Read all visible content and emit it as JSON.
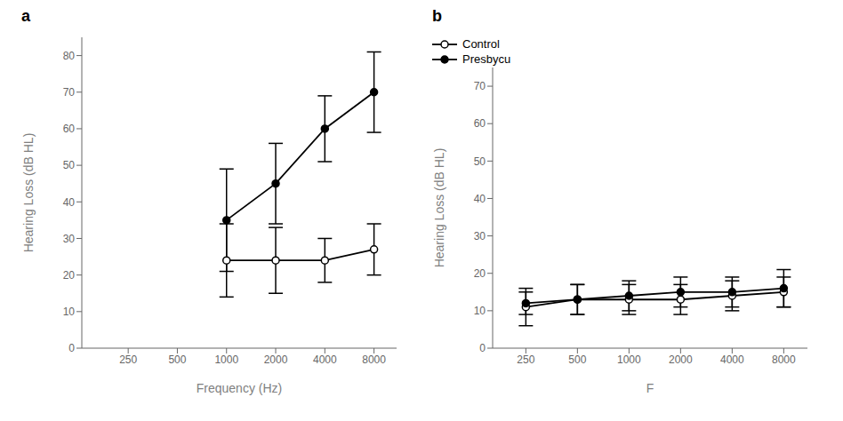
{
  "chart_data": [
    {
      "type": "line",
      "title": "a",
      "xlabel": "Frequency (Hz)",
      "ylabel": "Hearing Loss (dB HL)",
      "x": [
        1000,
        2000,
        4000,
        8000
      ],
      "series": [
        {
          "color": "black",
          "marker": "filled_circle",
          "values": [
            35,
            45,
            60,
            70
          ],
          "errors": [
            14,
            11,
            9,
            11
          ]
        },
        {
          "color": "black",
          "marker": "open_circle",
          "values": [
            24,
            24,
            24,
            27
          ],
          "errors": [
            10,
            9,
            6,
            7
          ]
        }
      ],
      "log": "x",
      "xlim": [
        130,
        11000
      ],
      "xticks": [
        250,
        500,
        1000,
        2000,
        4000,
        8000
      ],
      "ylim": [
        0,
        85
      ],
      "yticks": [
        0,
        10,
        20,
        30,
        40,
        50,
        60,
        70,
        80
      ],
      "grid": false
    },
    {
      "type": "line",
      "title": "b",
      "xlabel": "F",
      "ylabel": "Hearing Loss (dB HL)",
      "x": [
        250,
        500,
        1000,
        2000,
        4000,
        8000
      ],
      "series": [
        {
          "name": "Control",
          "color": "black",
          "marker": "open_circle",
          "values": [
            11,
            13,
            13,
            13,
            14,
            15
          ],
          "errors": [
            5,
            4,
            4,
            4,
            4,
            4
          ]
        },
        {
          "name": "Presbycu",
          "color": "black",
          "marker": "filled_circle",
          "values": [
            12,
            13,
            14,
            15,
            15,
            16
          ],
          "errors": [
            3,
            4,
            4,
            4,
            4,
            5
          ]
        }
      ],
      "log": "x",
      "xlim": [
        160,
        11000
      ],
      "xticks": [
        250,
        500,
        1000,
        2000,
        4000,
        8000
      ],
      "ylim": [
        0,
        75
      ],
      "yticks": [
        0,
        10,
        20,
        30,
        40,
        50,
        60,
        70
      ],
      "grid": false,
      "legend": "upper right"
    }
  ]
}
